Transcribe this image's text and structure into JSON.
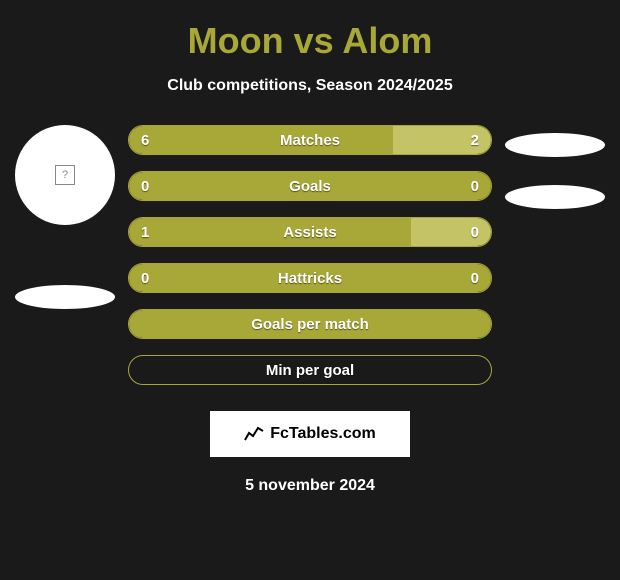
{
  "title": "Moon vs Alom",
  "subtitle": "Club competitions, Season 2024/2025",
  "colors": {
    "background": "#1a1a1a",
    "accent": "#a8a838",
    "accent_light": "#c4c466",
    "white": "#ffffff"
  },
  "stats": [
    {
      "label": "Matches",
      "left_val": "6",
      "right_val": "2",
      "left_pct": 73,
      "right_pct": 27,
      "type": "split"
    },
    {
      "label": "Goals",
      "left_val": "0",
      "right_val": "0",
      "left_pct": 100,
      "right_pct": 0,
      "type": "full"
    },
    {
      "label": "Assists",
      "left_val": "1",
      "right_val": "0",
      "left_pct": 78,
      "right_pct": 22,
      "type": "split"
    },
    {
      "label": "Hattricks",
      "left_val": "0",
      "right_val": "0",
      "left_pct": 100,
      "right_pct": 0,
      "type": "full"
    },
    {
      "label": "Goals per match",
      "left_val": "",
      "right_val": "",
      "left_pct": 100,
      "right_pct": 0,
      "type": "full-nolabel"
    },
    {
      "label": "Min per goal",
      "left_val": "",
      "right_val": "",
      "left_pct": 0,
      "right_pct": 0,
      "type": "outline"
    }
  ],
  "logo": {
    "text": "FcTables.com"
  },
  "date": "5 november 2024"
}
